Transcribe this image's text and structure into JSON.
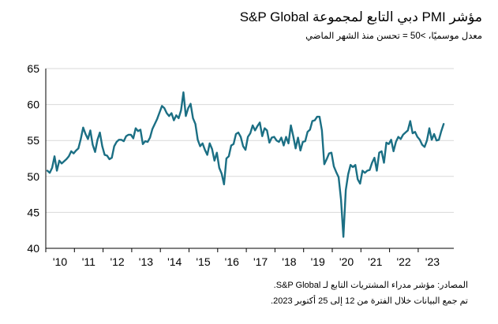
{
  "title": "مؤشر PMI دبي التابع لمجموعة S&P Global",
  "subtitle": "معدل موسميًا، >50 = تحسن منذ الشهر الماضي",
  "source_note": "المصادر: مؤشر مدراء المشتريات التابع لـ S&P Global.",
  "collection_note": "تم جمع البيانات خلال الفترة من 12 إلى 25 أكتوبر 2023.",
  "colors": {
    "line": "#1b6f84",
    "axis": "#000000",
    "grid": "#d9d9d9"
  },
  "chart_data": {
    "type": "line",
    "x_start": "2010-01",
    "x_step": "month",
    "ylim": [
      40,
      65
    ],
    "yticks": [
      40,
      45,
      50,
      55,
      60,
      65
    ],
    "xticks": [
      "'10",
      "'11",
      "'12",
      "'13",
      "'14",
      "'15",
      "'16",
      "'17",
      "'18",
      "'19",
      "'20",
      "'21",
      "'22",
      "'23"
    ],
    "grid": "horizontal",
    "series": [
      {
        "values": [
          50.8,
          50.5,
          51.2,
          52.8,
          50.8,
          52.2,
          51.8,
          52.1,
          52.4,
          52.8,
          53.5,
          53.2,
          53.6,
          53.9,
          55.2,
          56.8,
          55.9,
          55.2,
          56.4,
          54.4,
          53.4,
          55.1,
          56.1,
          54.2,
          53.0,
          52.9,
          52.4,
          52.6,
          54.2,
          54.8,
          55.1,
          55.1,
          54.9,
          55.6,
          55.8,
          55.8,
          55.3,
          56.7,
          56.3,
          56.5,
          54.5,
          54.9,
          54.8,
          55.4,
          56.6,
          57.3,
          58.0,
          58.9,
          59.8,
          59.5,
          58.8,
          58.4,
          58.8,
          57.8,
          58.5,
          58.1,
          59.2,
          61.7,
          58.4,
          59.5,
          60.1,
          58.1,
          57.3,
          55.1,
          54.2,
          54.6,
          53.7,
          53.0,
          54.6,
          53.8,
          52.2,
          53.3,
          51.2,
          50.4,
          48.9,
          52.5,
          52.8,
          54.3,
          54.5,
          55.9,
          56.1,
          55.5,
          54.2,
          53.7,
          55.5,
          56.0,
          57.1,
          56.4,
          57.0,
          57.5,
          55.6,
          56.7,
          56.4,
          54.7,
          55.4,
          55.5,
          55.0,
          54.8,
          55.4,
          54.3,
          55.5,
          54.6,
          57.1,
          55.6,
          53.9,
          55.4,
          53.6,
          54.8,
          54.9,
          56.2,
          56.5,
          57.7,
          57.8,
          58.3,
          58.3,
          56.4,
          51.7,
          52.4,
          53.2,
          53.3,
          51.4,
          50.6,
          49.9,
          46.8,
          41.6,
          48.1,
          50.3,
          51.6,
          51.3,
          51.6,
          49.6,
          49.0,
          50.8,
          50.5,
          50.8,
          50.9,
          51.9,
          52.6,
          50.8,
          53.3,
          53.5,
          51.9,
          54.7,
          54.5,
          55.1,
          53.5,
          54.8,
          55.5,
          55.2,
          55.8,
          56.1,
          56.4,
          57.7,
          56.0,
          56.2,
          55.5,
          55.1,
          54.4,
          54.1,
          55.0,
          56.7,
          55.1,
          55.9,
          55.0,
          55.1,
          56.3,
          57.3
        ]
      }
    ]
  }
}
